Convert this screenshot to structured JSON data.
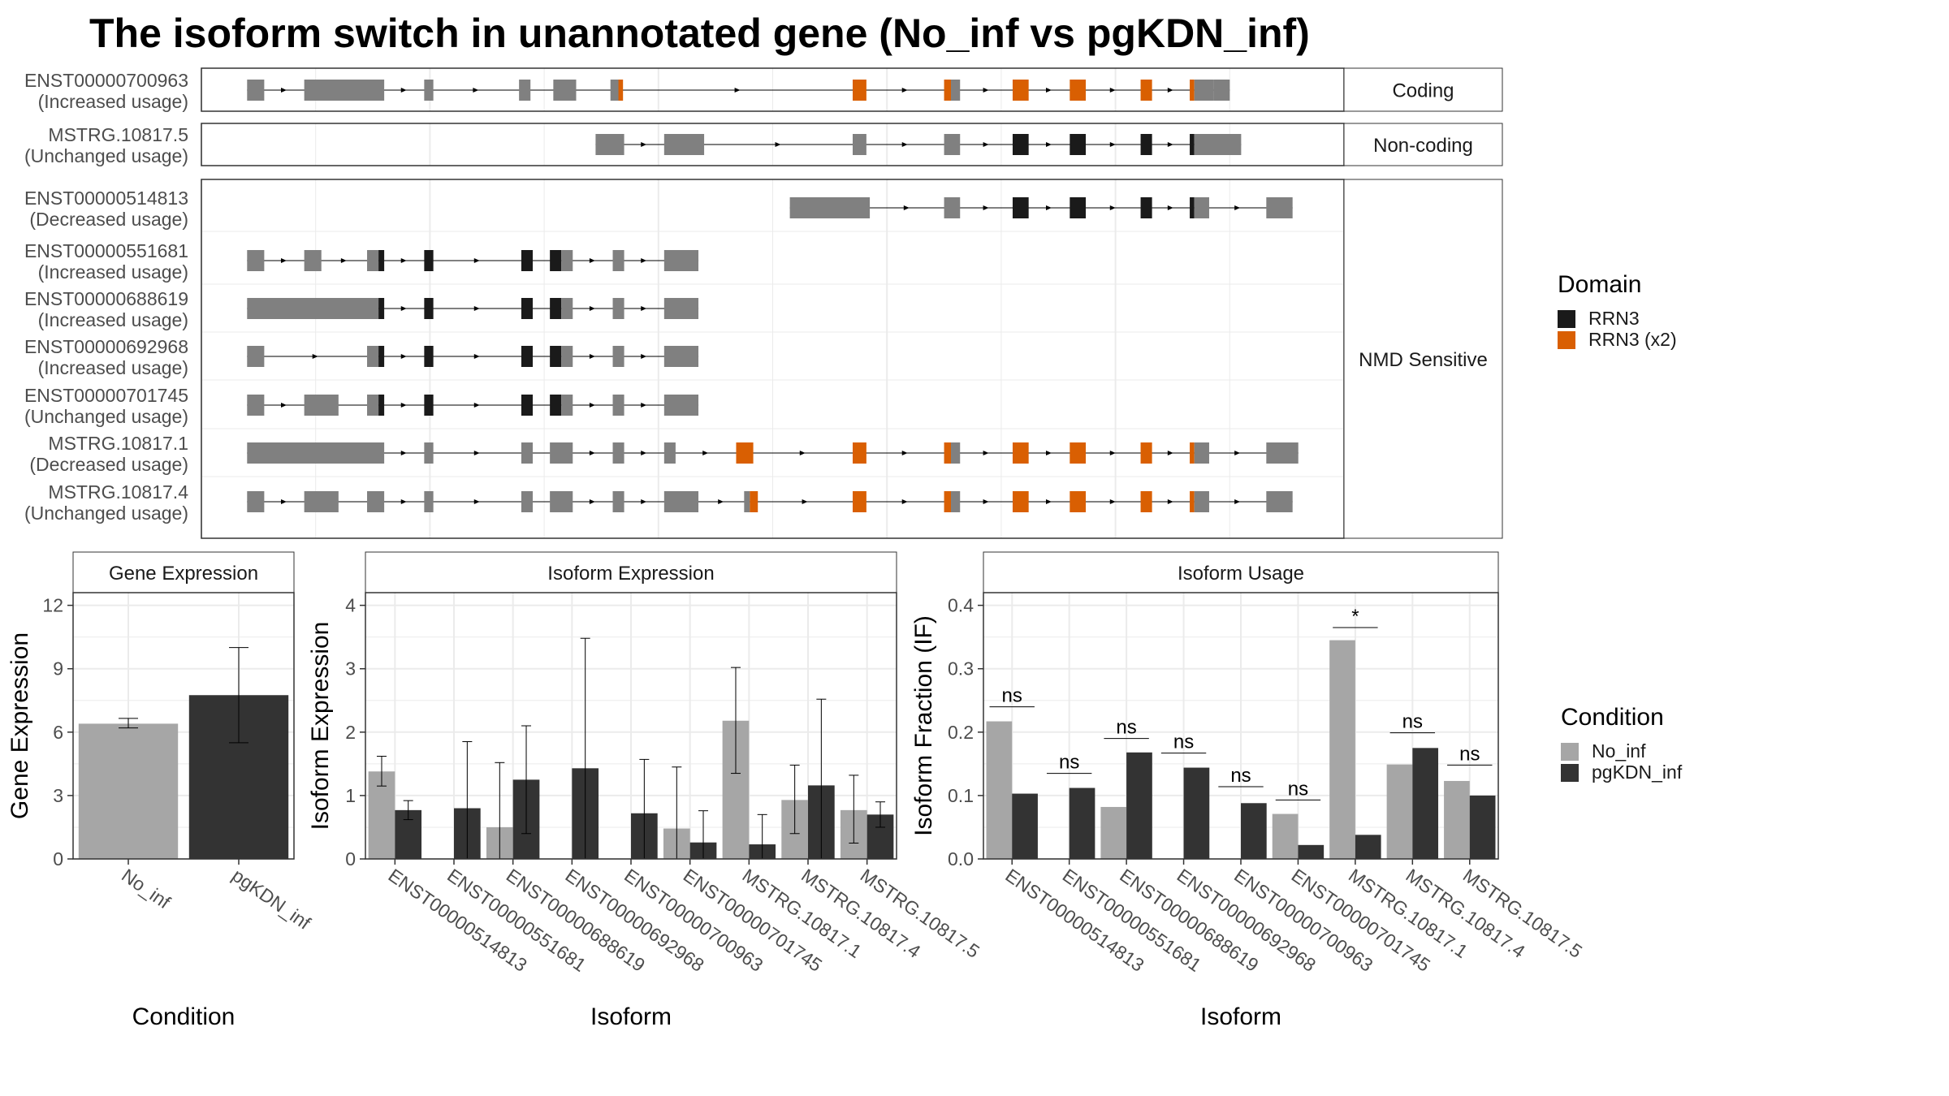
{
  "title": "The isoform switch in unannotated gene (No_inf vs pgKDN_inf)",
  "colors": {
    "exon": "#808080",
    "rrn3": "#1a1a1a",
    "rrn3x2": "#d95f02",
    "no_inf": "#a6a6a6",
    "pgkdn_inf": "#333333",
    "grid": "#ebebeb",
    "strip": "#ffffff"
  },
  "structure": {
    "coord_range": [
      0,
      100
    ],
    "intron_color": "#000000",
    "groups": [
      {
        "label": "Coding",
        "rows": [
          0
        ]
      },
      {
        "label": "Non-coding",
        "rows": [
          1
        ]
      },
      {
        "label": "NMD Sensitive",
        "rows": [
          2,
          3,
          4,
          5,
          6,
          7,
          8
        ]
      }
    ],
    "transcripts": [
      {
        "id": "ENST00000700963",
        "usage": "(Increased usage)",
        "span": [
          4,
          90
        ],
        "features": [
          [
            4,
            5.5,
            "exon"
          ],
          [
            9,
            16,
            "exon"
          ],
          [
            19.5,
            20.3,
            "exon"
          ],
          [
            27.8,
            28.8,
            "exon"
          ],
          [
            30.8,
            32.8,
            "exon"
          ],
          [
            35.8,
            36.7,
            "exon"
          ],
          [
            36.5,
            36.9,
            "rrn3x2"
          ],
          [
            57,
            58.2,
            "rrn3x2"
          ],
          [
            65,
            65.6,
            "rrn3x2"
          ],
          [
            65.6,
            66.4,
            "exon"
          ],
          [
            71,
            72.4,
            "rrn3x2"
          ],
          [
            76,
            77.4,
            "rrn3x2"
          ],
          [
            82.2,
            83.2,
            "rrn3x2"
          ],
          [
            86.5,
            86.9,
            "rrn3x2"
          ],
          [
            86.9,
            88.6,
            "exon"
          ],
          [
            88.6,
            90,
            "exon"
          ]
        ]
      },
      {
        "id": "MSTRG.10817.5",
        "usage": "(Unchanged usage)",
        "span": [
          34.5,
          91
        ],
        "features": [
          [
            34.5,
            37,
            "exon"
          ],
          [
            40.5,
            44,
            "exon"
          ],
          [
            57,
            58.2,
            "exon"
          ],
          [
            65,
            66.4,
            "exon"
          ],
          [
            71,
            72.4,
            "rrn3"
          ],
          [
            76,
            77.4,
            "rrn3"
          ],
          [
            82.2,
            83.2,
            "rrn3"
          ],
          [
            86.5,
            86.9,
            "rrn3"
          ],
          [
            86.9,
            91,
            "exon"
          ]
        ]
      },
      {
        "id": "ENST00000514813",
        "usage": "(Decreased usage)",
        "span": [
          51.5,
          95.5
        ],
        "features": [
          [
            51.5,
            58.5,
            "exon"
          ],
          [
            65,
            66.4,
            "exon"
          ],
          [
            71,
            72.4,
            "rrn3"
          ],
          [
            76,
            77.4,
            "rrn3"
          ],
          [
            82.2,
            83.2,
            "rrn3"
          ],
          [
            86.5,
            86.9,
            "rrn3"
          ],
          [
            86.9,
            88.2,
            "exon"
          ],
          [
            93.2,
            95.5,
            "exon"
          ]
        ]
      },
      {
        "id": "ENST00000551681",
        "usage": "(Increased usage)",
        "span": [
          4,
          43.5
        ],
        "features": [
          [
            4,
            5.5,
            "exon"
          ],
          [
            9,
            10.5,
            "exon"
          ],
          [
            14.5,
            15.5,
            "exon"
          ],
          [
            15.5,
            16,
            "rrn3"
          ],
          [
            19.5,
            20.3,
            "rrn3"
          ],
          [
            28,
            29,
            "rrn3"
          ],
          [
            30.5,
            31.5,
            "rrn3"
          ],
          [
            31.5,
            32.5,
            "exon"
          ],
          [
            36,
            37,
            "exon"
          ],
          [
            40.5,
            43.5,
            "exon"
          ]
        ]
      },
      {
        "id": "ENST00000688619",
        "usage": "(Increased usage)",
        "span": [
          4,
          43.5
        ],
        "features": [
          [
            4,
            15.5,
            "exon"
          ],
          [
            15.5,
            16,
            "rrn3"
          ],
          [
            19.5,
            20.3,
            "rrn3"
          ],
          [
            28,
            29,
            "rrn3"
          ],
          [
            30.5,
            31.5,
            "rrn3"
          ],
          [
            31.5,
            32.5,
            "exon"
          ],
          [
            36,
            37,
            "exon"
          ],
          [
            40.5,
            43.5,
            "exon"
          ]
        ]
      },
      {
        "id": "ENST00000692968",
        "usage": "(Increased usage)",
        "span": [
          4,
          43.5
        ],
        "features": [
          [
            4,
            5.5,
            "exon"
          ],
          [
            14.5,
            15.5,
            "exon"
          ],
          [
            15.5,
            16,
            "rrn3"
          ],
          [
            19.5,
            20.3,
            "rrn3"
          ],
          [
            28,
            29,
            "rrn3"
          ],
          [
            30.5,
            31.5,
            "rrn3"
          ],
          [
            31.5,
            32.5,
            "exon"
          ],
          [
            36,
            37,
            "exon"
          ],
          [
            40.5,
            43.5,
            "exon"
          ]
        ]
      },
      {
        "id": "ENST00000701745",
        "usage": "(Unchanged usage)",
        "span": [
          4,
          43.5
        ],
        "features": [
          [
            4,
            5.5,
            "exon"
          ],
          [
            9,
            12,
            "exon"
          ],
          [
            14.5,
            15.5,
            "exon"
          ],
          [
            15.5,
            16,
            "rrn3"
          ],
          [
            19.5,
            20.3,
            "rrn3"
          ],
          [
            28,
            29,
            "rrn3"
          ],
          [
            30.5,
            31.5,
            "rrn3"
          ],
          [
            31.5,
            32.5,
            "exon"
          ],
          [
            36,
            37,
            "exon"
          ],
          [
            40.5,
            43.5,
            "exon"
          ]
        ]
      },
      {
        "id": "MSTRG.10817.1",
        "usage": "(Decreased usage)",
        "span": [
          4,
          96
        ],
        "features": [
          [
            4,
            16,
            "exon"
          ],
          [
            19.5,
            20.3,
            "exon"
          ],
          [
            28,
            29,
            "exon"
          ],
          [
            30.5,
            32.5,
            "exon"
          ],
          [
            36,
            37,
            "exon"
          ],
          [
            40.5,
            41.5,
            "exon"
          ],
          [
            46.8,
            48.3,
            "rrn3x2"
          ],
          [
            57,
            58.2,
            "rrn3x2"
          ],
          [
            65,
            65.6,
            "rrn3x2"
          ],
          [
            65.6,
            66.4,
            "exon"
          ],
          [
            71,
            72.4,
            "rrn3x2"
          ],
          [
            76,
            77.4,
            "rrn3x2"
          ],
          [
            82.2,
            83.2,
            "rrn3x2"
          ],
          [
            86.5,
            86.9,
            "rrn3x2"
          ],
          [
            86.9,
            88.2,
            "exon"
          ],
          [
            93.2,
            96,
            "exon"
          ]
        ]
      },
      {
        "id": "MSTRG.10817.4",
        "usage": "(Unchanged usage)",
        "span": [
          4,
          95.5
        ],
        "features": [
          [
            4,
            5.5,
            "exon"
          ],
          [
            9,
            12,
            "exon"
          ],
          [
            14.5,
            16,
            "exon"
          ],
          [
            19.5,
            20.3,
            "exon"
          ],
          [
            28,
            29,
            "exon"
          ],
          [
            30.5,
            32.5,
            "exon"
          ],
          [
            36,
            37,
            "exon"
          ],
          [
            40.5,
            43.5,
            "exon"
          ],
          [
            47.5,
            48,
            "exon"
          ],
          [
            48,
            48.7,
            "rrn3x2"
          ],
          [
            57,
            58.2,
            "rrn3x2"
          ],
          [
            65,
            65.6,
            "rrn3x2"
          ],
          [
            65.6,
            66.4,
            "exon"
          ],
          [
            71,
            72.4,
            "rrn3x2"
          ],
          [
            76,
            77.4,
            "rrn3x2"
          ],
          [
            82.2,
            83.2,
            "rrn3x2"
          ],
          [
            86.5,
            86.9,
            "rrn3x2"
          ],
          [
            86.9,
            88.2,
            "exon"
          ],
          [
            93.2,
            95.5,
            "exon"
          ]
        ]
      }
    ]
  },
  "legend_domain": {
    "title": "Domain",
    "items": [
      {
        "label": "RRN3",
        "color": "#1a1a1a"
      },
      {
        "label": "RRN3 (x2)",
        "color": "#d95f02"
      }
    ]
  },
  "legend_condition": {
    "title": "Condition",
    "items": [
      {
        "label": "No_inf",
        "color": "#a6a6a6"
      },
      {
        "label": "pgKDN_inf",
        "color": "#333333"
      }
    ]
  },
  "chart_data": [
    {
      "type": "bar",
      "strip": "Gene Expression",
      "xlabel": "Condition",
      "ylabel": "Gene Expression",
      "ylim": [
        0,
        12.6
      ],
      "yticks": [
        0,
        3,
        6,
        9,
        12
      ],
      "ytick_labels": [
        "0",
        "3",
        "6",
        "9",
        "12"
      ],
      "categories": [
        "No_inf",
        "pgKDN_inf"
      ],
      "values": [
        6.4,
        7.75
      ],
      "err_low": [
        6.2,
        5.5
      ],
      "err_high": [
        6.65,
        10.0
      ]
    },
    {
      "type": "bar",
      "strip": "Isoform Expression",
      "xlabel": "Isoform",
      "ylabel": "Isoform Expression",
      "ylim": [
        0,
        4.2
      ],
      "yticks": [
        0,
        1,
        2,
        3,
        4
      ],
      "ytick_labels": [
        "0",
        "1",
        "2",
        "3",
        "4"
      ],
      "categories": [
        "ENST00000514813",
        "ENST00000551681",
        "ENST00000688619",
        "ENST00000692968",
        "ENST00000700963",
        "ENST00000701745",
        "MSTRG.10817.1",
        "MSTRG.10817.4",
        "MSTRG.10817.5"
      ],
      "series": [
        {
          "name": "No_inf",
          "values": [
            1.38,
            0,
            0.5,
            0,
            0,
            0.48,
            2.18,
            0.93,
            0.77
          ],
          "err_low": [
            1.15,
            0,
            0,
            0,
            0,
            0,
            1.35,
            0.4,
            0.25
          ],
          "err_high": [
            1.62,
            0,
            1.52,
            0,
            0,
            1.45,
            3.02,
            1.48,
            1.32
          ]
        },
        {
          "name": "pgKDN_inf",
          "values": [
            0.77,
            0.8,
            1.25,
            1.43,
            0.72,
            0.26,
            0.23,
            1.16,
            0.7
          ],
          "err_low": [
            0.62,
            0,
            0.4,
            0,
            0,
            0,
            0,
            0,
            0.5
          ],
          "err_high": [
            0.92,
            1.85,
            2.1,
            3.48,
            1.57,
            0.76,
            0.7,
            2.52,
            0.9
          ]
        }
      ]
    },
    {
      "type": "bar",
      "strip": "Isoform Usage",
      "xlabel": "Isoform",
      "ylabel": "Isoform Fraction (IF)",
      "ylim": [
        0,
        0.42
      ],
      "yticks": [
        0,
        0.1,
        0.2,
        0.3,
        0.4
      ],
      "ytick_labels": [
        "0.0",
        "0.1",
        "0.2",
        "0.3",
        "0.4"
      ],
      "categories": [
        "ENST00000514813",
        "ENST00000551681",
        "ENST00000688619",
        "ENST00000692968",
        "ENST00000700963",
        "ENST00000701745",
        "MSTRG.10817.1",
        "MSTRG.10817.4",
        "MSTRG.10817.5"
      ],
      "series": [
        {
          "name": "No_inf",
          "values": [
            0.217,
            0,
            0.082,
            0,
            0,
            0.071,
            0.345,
            0.149,
            0.123
          ]
        },
        {
          "name": "pgKDN_inf",
          "values": [
            0.103,
            0.112,
            0.168,
            0.144,
            0.088,
            0.022,
            0.038,
            0.175,
            0.1
          ]
        }
      ],
      "significance": [
        "ns",
        "ns",
        "ns",
        "ns",
        "ns",
        "ns",
        "*",
        "ns",
        "ns"
      ],
      "sig_y": [
        0.24,
        0.135,
        0.19,
        0.167,
        0.114,
        0.093,
        0.365,
        0.199,
        0.148
      ]
    }
  ]
}
